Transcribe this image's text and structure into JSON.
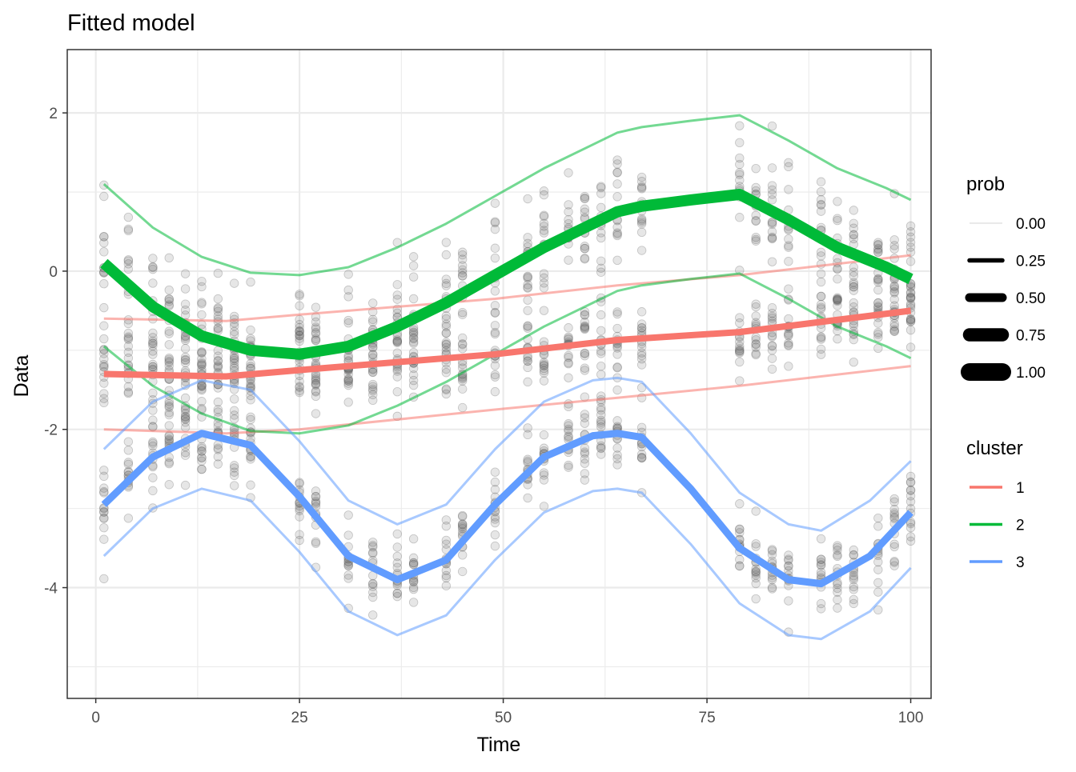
{
  "chart_data": {
    "type": "line",
    "title": "Fitted model",
    "xlabel": "Time",
    "ylabel": "Data",
    "xlim": [
      -3.5,
      102.5
    ],
    "ylim": [
      -5.4,
      2.8
    ],
    "xticks": [
      0,
      25,
      50,
      75,
      100
    ],
    "xtick_labels": [
      "0",
      "25",
      "50",
      "75",
      "100"
    ],
    "yticks": [
      -4,
      -2,
      0,
      2
    ],
    "ytick_labels": [
      "-4",
      "-2",
      "0",
      "2"
    ],
    "grid": true,
    "legend_position": "right",
    "legends": {
      "prob": {
        "title": "prob",
        "entries": [
          {
            "label": "0.00",
            "value": 0.0
          },
          {
            "label": "0.25",
            "value": 0.25
          },
          {
            "label": "0.50",
            "value": 0.5
          },
          {
            "label": "0.75",
            "value": 0.75
          },
          {
            "label": "1.00",
            "value": 1.0
          }
        ]
      },
      "cluster": {
        "title": "cluster",
        "entries": [
          {
            "label": "1",
            "color": "#F8766D"
          },
          {
            "label": "2",
            "color": "#00BA38"
          },
          {
            "label": "3",
            "color": "#619CFF"
          }
        ]
      }
    },
    "series": [
      {
        "name": "1",
        "color": "#F8766D",
        "prob": 0.33,
        "x": [
          1,
          16,
          25,
          49,
          64,
          79,
          100
        ],
        "y": [
          -1.3,
          -1.33,
          -1.25,
          -1.05,
          -0.87,
          -0.77,
          -0.5
        ],
        "lower": [
          -2.0,
          -2.05,
          -2.0,
          -1.75,
          -1.6,
          -1.45,
          -1.2
        ],
        "upper": [
          -0.6,
          -0.63,
          -0.55,
          -0.35,
          -0.18,
          -0.05,
          0.2
        ]
      },
      {
        "name": "2",
        "color": "#00BA38",
        "prob": 0.35,
        "x": [
          1,
          7,
          13,
          19,
          25,
          31,
          37,
          43,
          49,
          55,
          61,
          64,
          67,
          73,
          79,
          85,
          91,
          97,
          100
        ],
        "y": [
          0.1,
          -0.45,
          -0.82,
          -1.0,
          -1.05,
          -0.95,
          -0.7,
          -0.4,
          -0.05,
          0.3,
          0.6,
          0.75,
          0.82,
          0.9,
          0.97,
          0.65,
          0.3,
          0.05,
          -0.1
        ],
        "lower": [
          -0.95,
          -1.45,
          -1.8,
          -2.02,
          -2.05,
          -1.95,
          -1.7,
          -1.4,
          -1.05,
          -0.7,
          -0.4,
          -0.25,
          -0.18,
          -0.1,
          -0.03,
          -0.35,
          -0.7,
          -0.95,
          -1.1
        ],
        "upper": [
          1.1,
          0.55,
          0.18,
          -0.02,
          -0.05,
          0.05,
          0.3,
          0.6,
          0.95,
          1.3,
          1.6,
          1.75,
          1.82,
          1.9,
          1.97,
          1.65,
          1.3,
          1.05,
          0.9
        ]
      },
      {
        "name": "3",
        "color": "#619CFF",
        "prob": 0.32,
        "x": [
          1,
          7,
          13,
          19,
          25,
          31,
          37,
          43,
          49,
          55,
          61,
          64,
          67,
          73,
          79,
          85,
          89,
          95,
          100
        ],
        "y": [
          -2.95,
          -2.35,
          -2.05,
          -2.2,
          -2.85,
          -3.6,
          -3.9,
          -3.65,
          -2.95,
          -2.35,
          -2.08,
          -2.05,
          -2.1,
          -2.75,
          -3.5,
          -3.9,
          -3.95,
          -3.6,
          -3.05
        ],
        "lower": [
          -3.6,
          -3.0,
          -2.75,
          -2.9,
          -3.55,
          -4.3,
          -4.6,
          -4.35,
          -3.65,
          -3.05,
          -2.78,
          -2.75,
          -2.8,
          -3.45,
          -4.2,
          -4.6,
          -4.65,
          -4.3,
          -3.75
        ],
        "upper": [
          -2.25,
          -1.65,
          -1.38,
          -1.5,
          -2.15,
          -2.9,
          -3.2,
          -2.95,
          -2.25,
          -1.65,
          -1.38,
          -1.35,
          -1.4,
          -2.05,
          -2.8,
          -3.2,
          -3.28,
          -2.9,
          -2.4
        ]
      }
    ],
    "scatter": {
      "name": "observations",
      "color": "#595959",
      "opacity": 0.15,
      "time_points": [
        1,
        4,
        7,
        9,
        11,
        13,
        15,
        17,
        19,
        25,
        27,
        31,
        34,
        37,
        39,
        43,
        45,
        49,
        53,
        55,
        58,
        60,
        62,
        64,
        67,
        79,
        81,
        83,
        85,
        89,
        91,
        93,
        96,
        98,
        100
      ]
    }
  }
}
